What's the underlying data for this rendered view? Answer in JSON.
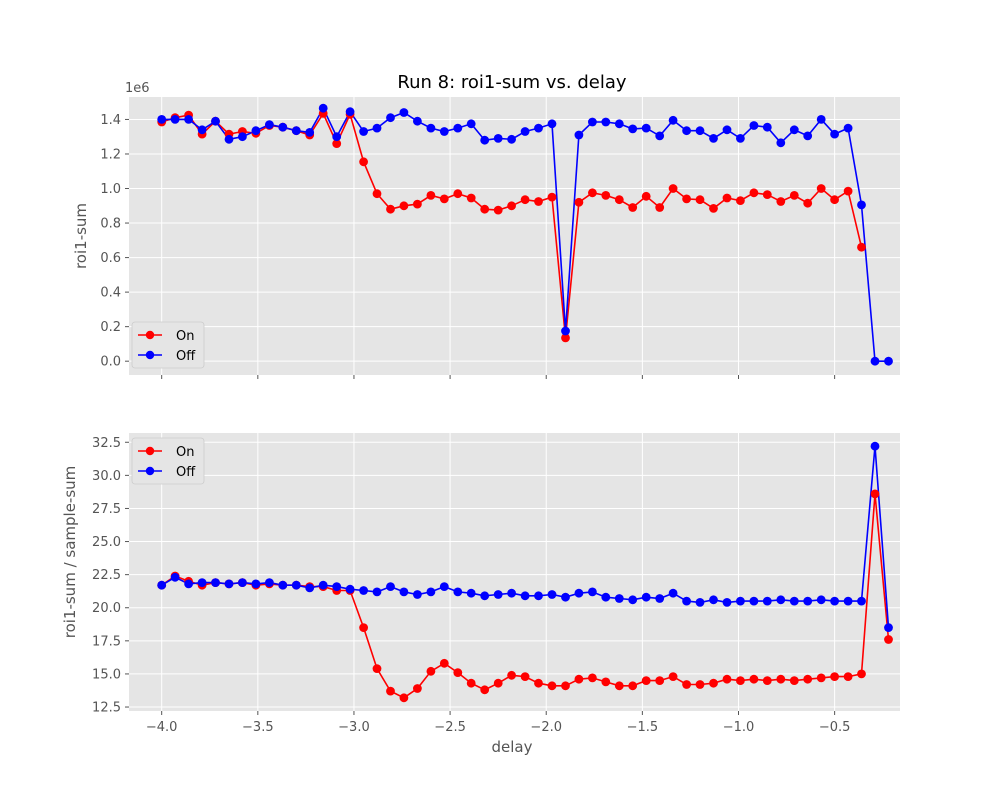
{
  "figure": {
    "title": "Run 8: roi1-sum vs. delay"
  },
  "chart_data": [
    {
      "type": "line",
      "title": "Run 8: roi1-sum vs. delay",
      "xlabel": "",
      "ylabel": "roi1-sum",
      "y_offset_label": "1e6",
      "xlim": [
        -4.17,
        -0.16
      ],
      "ylim": [
        -0.08,
        1.53
      ],
      "x_ticks": [
        -4.0,
        -3.5,
        -3.0,
        -2.5,
        -2.0,
        -1.5,
        -1.0,
        -0.5
      ],
      "y_ticks": [
        0.0,
        0.2,
        0.4,
        0.6,
        0.8,
        1.0,
        1.2,
        1.4
      ],
      "y_tick_labels": [
        "0.0",
        "0.2",
        "0.4",
        "0.6",
        "0.8",
        "1.0",
        "1.2",
        "1.4"
      ],
      "grid": true,
      "legend_placement": "lower-left",
      "x": [
        -4.0,
        -3.93,
        -3.86,
        -3.79,
        -3.72,
        -3.65,
        -3.58,
        -3.51,
        -3.44,
        -3.37,
        -3.3,
        -3.23,
        -3.16,
        -3.09,
        -3.02,
        -2.95,
        -2.88,
        -2.81,
        -2.74,
        -2.67,
        -2.6,
        -2.53,
        -2.46,
        -2.39,
        -2.32,
        -2.25,
        -2.18,
        -2.11,
        -2.04,
        -1.97,
        -1.9,
        -1.83,
        -1.76,
        -1.69,
        -1.62,
        -1.55,
        -1.48,
        -1.41,
        -1.34,
        -1.27,
        -1.2,
        -1.13,
        -1.06,
        -0.99,
        -0.92,
        -0.85,
        -0.78,
        -0.71,
        -0.64,
        -0.57,
        -0.5,
        -0.43,
        -0.36,
        -0.29,
        -0.22
      ],
      "series": [
        {
          "name": "On",
          "color": "#ff0000",
          "values": [
            1.385,
            1.41,
            1.425,
            1.315,
            1.39,
            1.315,
            1.33,
            1.32,
            1.365,
            1.355,
            1.335,
            1.31,
            1.435,
            1.26,
            1.43,
            1.155,
            0.97,
            0.88,
            0.9,
            0.91,
            0.96,
            0.94,
            0.97,
            0.945,
            0.88,
            0.875,
            0.9,
            0.935,
            0.925,
            0.95,
            0.135,
            0.92,
            0.975,
            0.96,
            0.935,
            0.89,
            0.955,
            0.89,
            1.0,
            0.94,
            0.935,
            0.885,
            0.945,
            0.93,
            0.975,
            0.965,
            0.925,
            0.96,
            0.915,
            1.0,
            0.935,
            0.985,
            0.66,
            null,
            null
          ]
        },
        {
          "name": "Off",
          "color": "#0000ff",
          "values": [
            1.4,
            1.4,
            1.4,
            1.34,
            1.39,
            1.285,
            1.3,
            1.335,
            1.37,
            1.355,
            1.335,
            1.325,
            1.465,
            1.3,
            1.445,
            1.33,
            1.35,
            1.41,
            1.44,
            1.39,
            1.35,
            1.33,
            1.35,
            1.375,
            1.28,
            1.29,
            1.285,
            1.33,
            1.35,
            1.375,
            0.175,
            1.31,
            1.385,
            1.385,
            1.375,
            1.345,
            1.35,
            1.305,
            1.395,
            1.335,
            1.335,
            1.29,
            1.34,
            1.29,
            1.365,
            1.355,
            1.265,
            1.34,
            1.305,
            1.4,
            1.315,
            1.35,
            0.905,
            0.0,
            0.0
          ]
        }
      ]
    },
    {
      "type": "line",
      "title": "",
      "xlabel": "delay",
      "ylabel": "roi1-sum / sample-sum",
      "xlim": [
        -4.17,
        -0.16
      ],
      "ylim": [
        12.2,
        33.2
      ],
      "x_ticks": [
        -4.0,
        -3.5,
        -3.0,
        -2.5,
        -2.0,
        -1.5,
        -1.0,
        -0.5
      ],
      "x_tick_labels": [
        "−4.0",
        "−3.5",
        "−3.0",
        "−2.5",
        "−2.0",
        "−1.5",
        "−1.0",
        "−0.5"
      ],
      "y_ticks": [
        12.5,
        15.0,
        17.5,
        20.0,
        22.5,
        25.0,
        27.5,
        30.0,
        32.5
      ],
      "y_tick_labels": [
        "12.5",
        "15.0",
        "17.5",
        "20.0",
        "22.5",
        "25.0",
        "27.5",
        "30.0",
        "32.5"
      ],
      "grid": true,
      "legend_placement": "upper-left",
      "x": [
        -4.0,
        -3.93,
        -3.86,
        -3.79,
        -3.72,
        -3.65,
        -3.58,
        -3.51,
        -3.44,
        -3.37,
        -3.3,
        -3.23,
        -3.16,
        -3.09,
        -3.02,
        -2.95,
        -2.88,
        -2.81,
        -2.74,
        -2.67,
        -2.6,
        -2.53,
        -2.46,
        -2.39,
        -2.32,
        -2.25,
        -2.18,
        -2.11,
        -2.04,
        -1.97,
        -1.9,
        -1.83,
        -1.76,
        -1.69,
        -1.62,
        -1.55,
        -1.48,
        -1.41,
        -1.34,
        -1.27,
        -1.2,
        -1.13,
        -1.06,
        -0.99,
        -0.92,
        -0.85,
        -0.78,
        -0.71,
        -0.64,
        -0.57,
        -0.5,
        -0.43,
        -0.36,
        -0.29,
        -0.22
      ],
      "series": [
        {
          "name": "On",
          "color": "#ff0000",
          "values": [
            21.7,
            22.4,
            22.0,
            21.7,
            21.9,
            21.8,
            21.9,
            21.7,
            21.8,
            21.7,
            21.7,
            21.6,
            21.6,
            21.3,
            21.3,
            18.5,
            15.4,
            13.7,
            13.2,
            13.9,
            15.2,
            15.8,
            15.1,
            14.3,
            13.8,
            14.3,
            14.9,
            14.8,
            14.3,
            14.1,
            14.1,
            14.6,
            14.7,
            14.4,
            14.1,
            14.1,
            14.5,
            14.5,
            14.8,
            14.2,
            14.2,
            14.3,
            14.6,
            14.5,
            14.6,
            14.5,
            14.6,
            14.5,
            14.6,
            14.7,
            14.8,
            14.8,
            15.0,
            28.6,
            17.6
          ]
        },
        {
          "name": "Off",
          "color": "#0000ff",
          "values": [
            21.7,
            22.3,
            21.8,
            21.9,
            21.9,
            21.8,
            21.9,
            21.8,
            21.9,
            21.7,
            21.7,
            21.5,
            21.7,
            21.6,
            21.4,
            21.3,
            21.2,
            21.6,
            21.2,
            21.0,
            21.2,
            21.6,
            21.2,
            21.1,
            20.9,
            21.0,
            21.1,
            20.9,
            20.9,
            21.0,
            20.8,
            21.1,
            21.2,
            20.8,
            20.7,
            20.6,
            20.8,
            20.7,
            21.1,
            20.5,
            20.4,
            20.6,
            20.4,
            20.5,
            20.5,
            20.5,
            20.6,
            20.5,
            20.5,
            20.6,
            20.5,
            20.5,
            20.5,
            32.2,
            18.5
          ]
        }
      ]
    }
  ]
}
